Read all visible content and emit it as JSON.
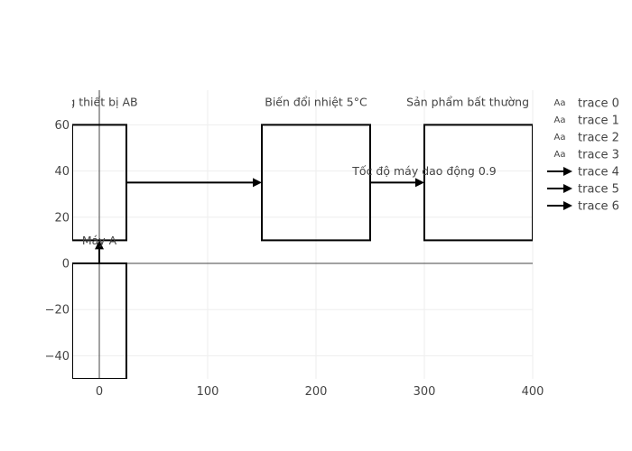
{
  "chart_data": {
    "type": "diagram",
    "title": "",
    "xlabel": "",
    "ylabel": "",
    "xlim": [
      -25,
      400
    ],
    "ylim": [
      -50,
      75
    ],
    "x_ticks": [
      0,
      100,
      200,
      300,
      400
    ],
    "y_ticks": [
      -40,
      -20,
      0,
      20,
      40,
      60
    ],
    "x_tick_labels": [
      "0",
      "100",
      "200",
      "300",
      "400"
    ],
    "y_tick_labels": [
      "−40",
      "−20",
      "0",
      "20",
      "40",
      "60"
    ],
    "grid": true,
    "legend": "right",
    "boxes": [
      {
        "x0": -25,
        "x1": 25,
        "y0": 10,
        "y1": 60
      },
      {
        "x0": -25,
        "x1": 25,
        "y0": -50,
        "y1": 0
      },
      {
        "x0": 150,
        "x1": 250,
        "y0": 10,
        "y1": 60
      },
      {
        "x0": 300,
        "x1": 400,
        "y0": 10,
        "y1": 60
      }
    ],
    "arrows": [
      {
        "from": [
          25,
          35
        ],
        "to": [
          150,
          35
        ]
      },
      {
        "from": [
          250,
          35
        ],
        "to": [
          300,
          35
        ]
      },
      {
        "from": [
          0,
          0
        ],
        "to": [
          0,
          10
        ]
      }
    ],
    "text_labels": [
      {
        "text": "ng thiết bị AB",
        "x": 0,
        "y": 70
      },
      {
        "text": "Biến đổi nhiệt 5°C",
        "x": 200,
        "y": 70
      },
      {
        "text": "Sản phẩm bất thường mâ",
        "x": 350,
        "y": 70
      },
      {
        "text": "Tốc độ máy dao động 0.9",
        "x": 300,
        "y": 40
      },
      {
        "text": "Máy A",
        "x": 0,
        "y": 10
      }
    ],
    "legend_entries": [
      {
        "name": "trace 0",
        "symbol": "text"
      },
      {
        "name": "trace 1",
        "symbol": "text"
      },
      {
        "name": "trace 2",
        "symbol": "text"
      },
      {
        "name": "trace 3",
        "symbol": "text"
      },
      {
        "name": "trace 4",
        "symbol": "arrow"
      },
      {
        "name": "trace 5",
        "symbol": "arrow"
      },
      {
        "name": "trace 6",
        "symbol": "arrow"
      }
    ],
    "legend_text_symbol": "Aa",
    "colors": {
      "box": "#000000",
      "arrow": "#000000",
      "grid": "#eeeeee",
      "zero_line": "#444444",
      "text": "#444444"
    }
  }
}
